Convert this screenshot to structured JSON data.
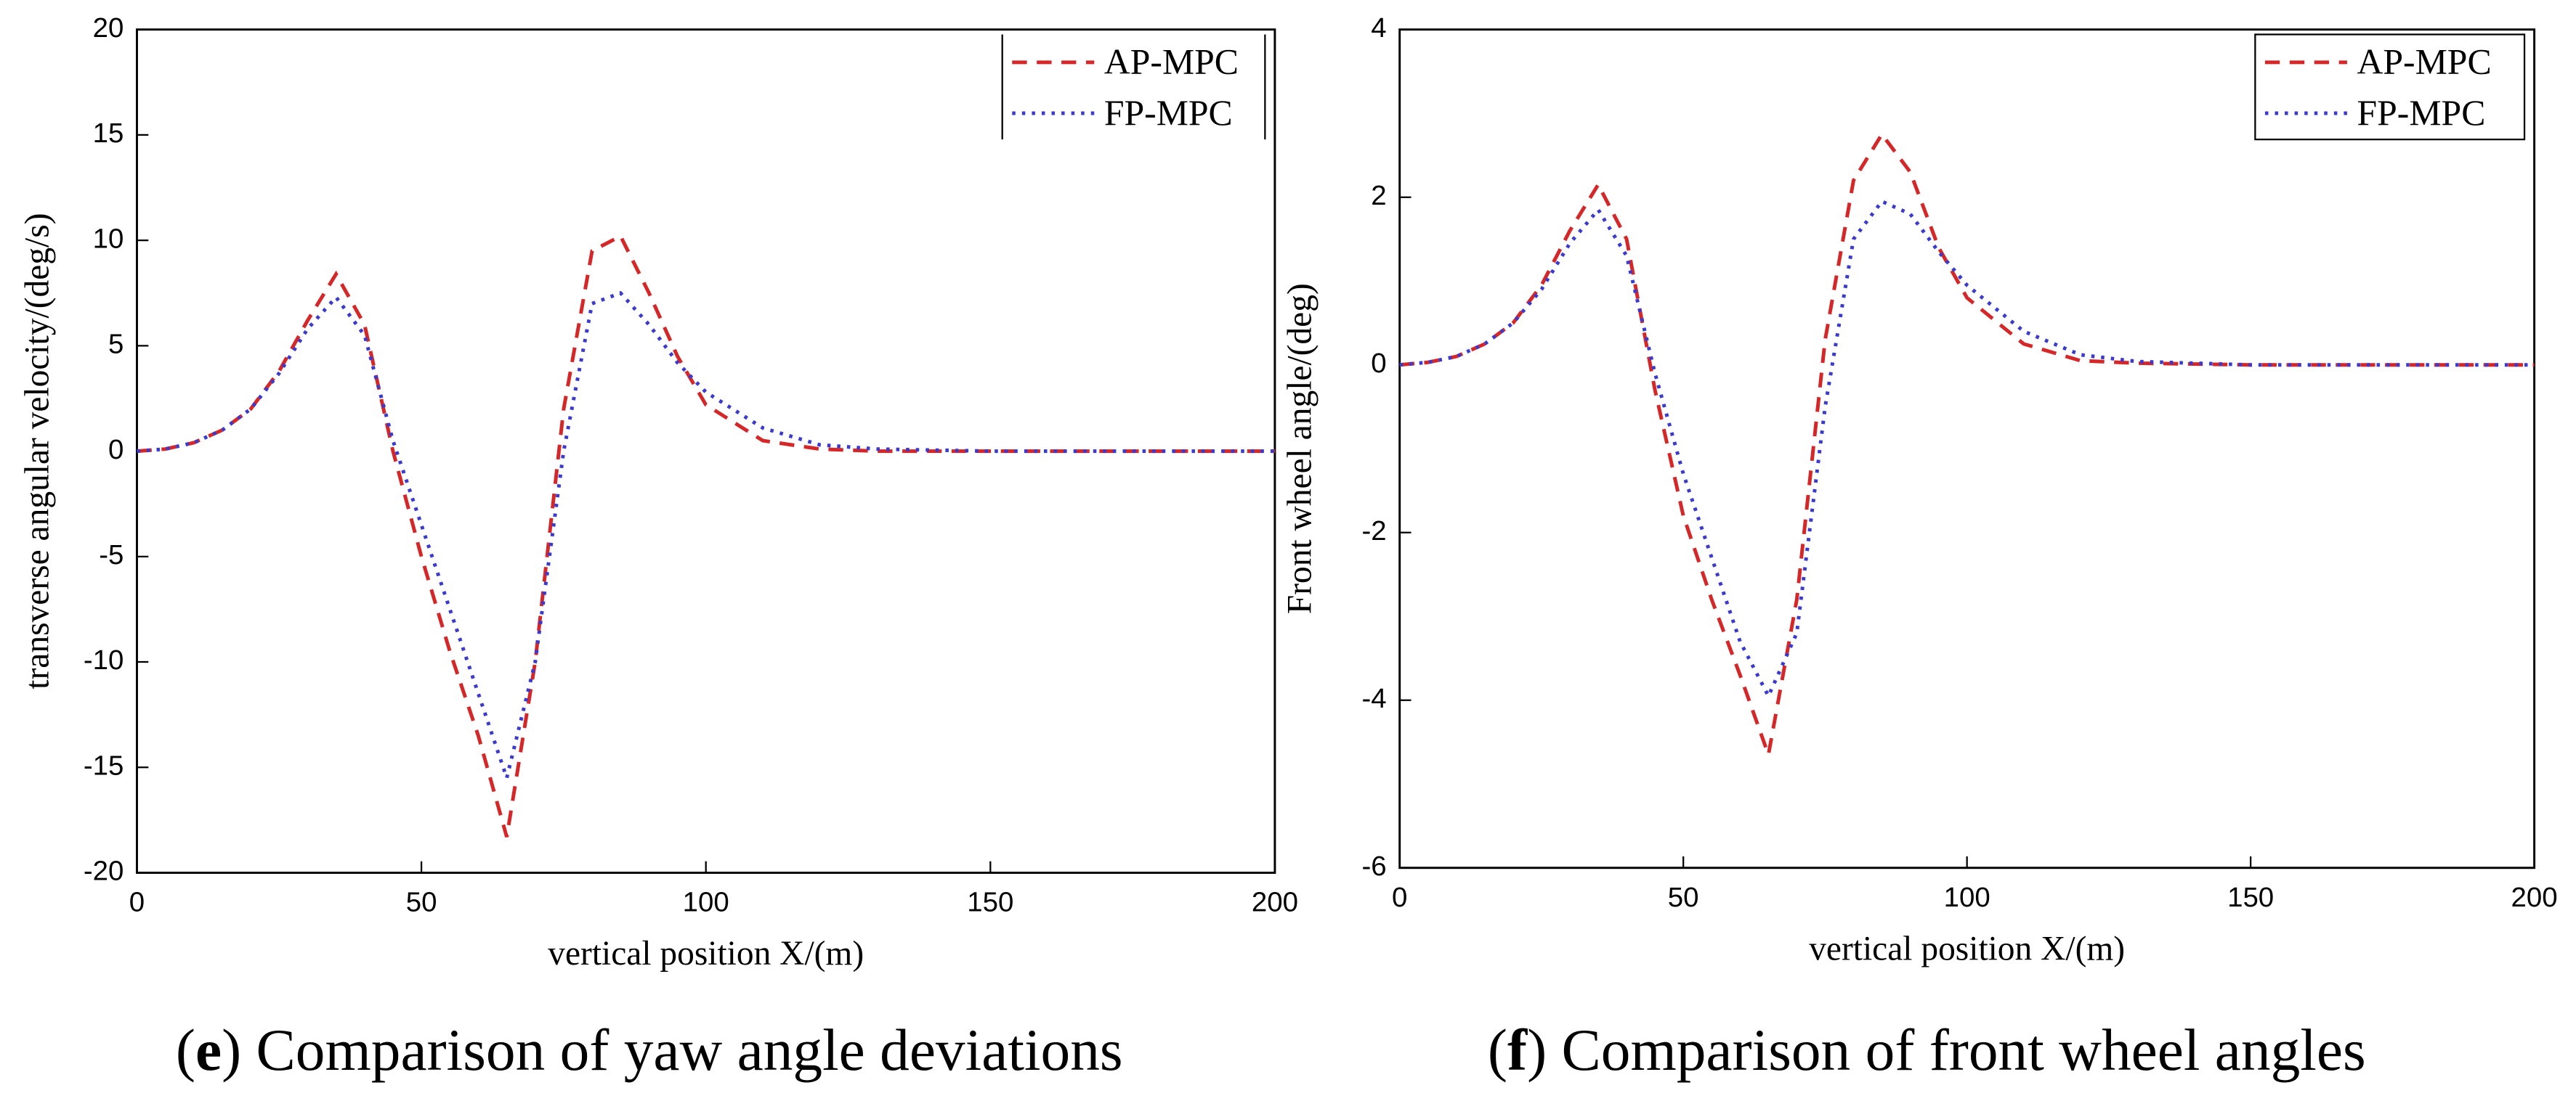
{
  "chart_data": [
    {
      "type": "line",
      "ylabel": "transverse angular velocity/(deg/s)",
      "xlabel": "vertical position X/(m)",
      "caption": [
        "(",
        "e",
        ") Comparison of yaw angle deviations"
      ],
      "xlim": [
        0,
        200
      ],
      "xticks": [
        0,
        50,
        100,
        150,
        200
      ],
      "ylim": [
        -20,
        20
      ],
      "yticks": [
        -20,
        -15,
        -10,
        -5,
        0,
        5,
        10,
        15,
        20
      ],
      "legend": "upper right",
      "x": [
        0,
        5,
        10,
        15,
        20,
        25,
        30,
        35,
        40,
        45,
        50,
        55,
        60,
        65,
        70,
        75,
        80,
        85,
        90,
        95,
        100,
        110,
        120,
        130,
        150,
        175,
        200
      ],
      "series": [
        {
          "name": "AP-MPC",
          "color": "#d62728",
          "dash": "dashed",
          "values": [
            0,
            0.1,
            0.4,
            1,
            2,
            3.8,
            6.2,
            8.4,
            6,
            0,
            -5,
            -9.5,
            -13.5,
            -18.3,
            -10,
            2,
            9.5,
            10.2,
            7.5,
            4.5,
            2.2,
            0.5,
            0.1,
            0,
            0,
            0,
            0
          ]
        },
        {
          "name": "FP-MPC",
          "color": "#3a3ad0",
          "dash": "dotted",
          "values": [
            0,
            0.1,
            0.4,
            1,
            2,
            3.7,
            5.8,
            7.3,
            5.5,
            0.5,
            -3.5,
            -7.5,
            -11.5,
            -15.5,
            -10,
            0,
            7,
            7.5,
            6,
            4.2,
            2.8,
            1.1,
            0.3,
            0.1,
            0,
            0,
            0
          ]
        }
      ]
    },
    {
      "type": "line",
      "ylabel": "Front wheel angle/(deg)",
      "xlabel": "vertical position X/(m)",
      "caption": [
        "(",
        "f",
        ") Comparison of front wheel angles"
      ],
      "xlim": [
        0,
        200
      ],
      "xticks": [
        0,
        50,
        100,
        150,
        200
      ],
      "ylim": [
        -6,
        4
      ],
      "yticks": [
        -6,
        -4,
        -2,
        0,
        2,
        4
      ],
      "legend": "upper right",
      "x": [
        0,
        5,
        10,
        15,
        20,
        25,
        30,
        35,
        40,
        45,
        50,
        55,
        60,
        65,
        70,
        75,
        80,
        85,
        90,
        95,
        100,
        110,
        120,
        130,
        150,
        175,
        200
      ],
      "series": [
        {
          "name": "AP-MPC",
          "color": "#d62728",
          "dash": "dashed",
          "values": [
            0,
            0.03,
            0.1,
            0.25,
            0.5,
            0.95,
            1.6,
            2.15,
            1.5,
            -0.3,
            -1.8,
            -2.8,
            -3.7,
            -4.65,
            -2.8,
            0.3,
            2.2,
            2.75,
            2.3,
            1.4,
            0.8,
            0.25,
            0.05,
            0.02,
            0,
            0,
            0
          ]
        },
        {
          "name": "FP-MPC",
          "color": "#3a3ad0",
          "dash": "dotted",
          "values": [
            0,
            0.03,
            0.1,
            0.25,
            0.5,
            0.9,
            1.45,
            1.85,
            1.3,
            -0.1,
            -1.3,
            -2.3,
            -3.3,
            -3.95,
            -3.2,
            -0.5,
            1.5,
            1.95,
            1.8,
            1.35,
            0.95,
            0.4,
            0.12,
            0.04,
            0,
            0,
            0
          ]
        }
      ]
    }
  ]
}
